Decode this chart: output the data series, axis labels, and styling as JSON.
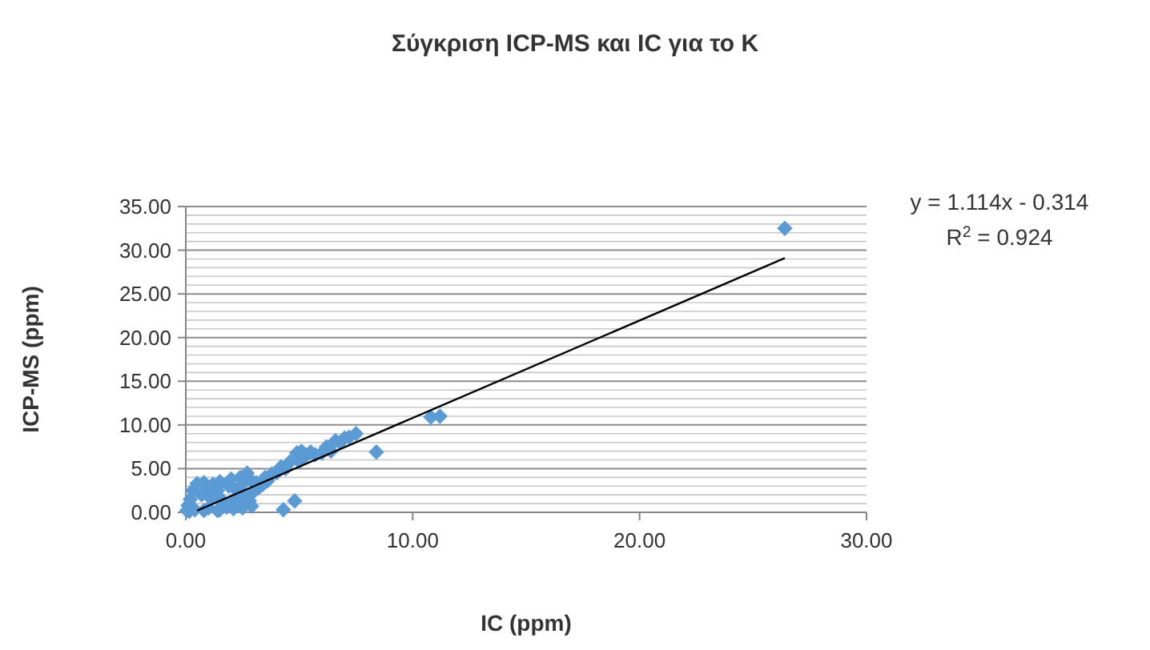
{
  "chart_data": {
    "type": "scatter",
    "title": "Σύγκριση ICP-MS και IC για το Κ",
    "xlabel": "IC (ppm)",
    "ylabel": "ICP-MS (ppm)",
    "series": [
      {
        "color": "#5b9bd5",
        "x": [
          0.05,
          0.1,
          0.15,
          0.2,
          0.3,
          0.4,
          0.5,
          0.7,
          0.8,
          0.8,
          1.0,
          1.0,
          1.1,
          1.2,
          1.4,
          1.5,
          1.5,
          1.6,
          1.8,
          1.9,
          2.0,
          2.0,
          2.1,
          2.2,
          2.3,
          2.4,
          2.5,
          2.5,
          2.6,
          2.7,
          2.8,
          2.9,
          3.0,
          3.1,
          3.2,
          3.4,
          3.5,
          3.6,
          3.8,
          4.0,
          4.2,
          4.4,
          4.6,
          4.9,
          5.0,
          5.1,
          5.3,
          5.5,
          5.7,
          6.0,
          6.2,
          6.4,
          6.6,
          6.8,
          7.0,
          7.2,
          7.5,
          4.3,
          4.8,
          8.4,
          10.8,
          11.2,
          26.4,
          1.4,
          2.9
        ],
        "values": [
          0.2,
          0.8,
          0.1,
          1.5,
          2.5,
          0.3,
          3.3,
          2.0,
          0.2,
          3.4,
          0.5,
          2.8,
          1.6,
          3.2,
          2.5,
          0.3,
          3.5,
          1.4,
          0.6,
          3.0,
          1.2,
          3.8,
          0.4,
          2.6,
          1.6,
          4.0,
          0.5,
          3.2,
          2.0,
          4.5,
          1.3,
          3.6,
          2.4,
          3.4,
          2.8,
          3.2,
          4.0,
          3.6,
          4.4,
          4.5,
          5.2,
          5.0,
          5.8,
          6.8,
          5.8,
          7.0,
          6.5,
          6.9,
          6.6,
          6.8,
          7.5,
          7.0,
          8.2,
          8.0,
          8.5,
          8.6,
          9.0,
          0.3,
          1.3,
          6.9,
          10.9,
          11.0,
          32.5,
          0.2,
          0.7
        ]
      },
      {
        "type": "line",
        "marker": "none",
        "color": "#000000",
        "x": [
          0.5,
          26.4
        ],
        "values": [
          0.2,
          29.1
        ]
      }
    ],
    "annotations": [
      "y = 1.114x - 0.314",
      "R$^{2}$ = 0.924"
    ],
    "marker": "diamond",
    "grid": "y",
    "xlim": [
      0,
      30
    ],
    "xticks": [
      {
        "value": 0,
        "label": "0.00"
      },
      {
        "value": 10,
        "label": "10.00"
      },
      {
        "value": 20,
        "label": "20.00"
      },
      {
        "value": 30,
        "label": "30.00"
      }
    ],
    "ylim": [
      0,
      35
    ],
    "yticks": [
      {
        "value": 0,
        "label": "0.00"
      },
      {
        "value": 1,
        "label": null
      },
      {
        "value": 2,
        "label": null
      },
      {
        "value": 3,
        "label": null
      },
      {
        "value": 4,
        "label": null
      },
      {
        "value": 5,
        "label": "5.00"
      },
      {
        "value": 6,
        "label": null
      },
      {
        "value": 7,
        "label": null
      },
      {
        "value": 8,
        "label": null
      },
      {
        "value": 9,
        "label": null
      },
      {
        "value": 10,
        "label": "10.00"
      },
      {
        "value": 11,
        "label": null
      },
      {
        "value": 12,
        "label": null
      },
      {
        "value": 13,
        "label": null
      },
      {
        "value": 14,
        "label": null
      },
      {
        "value": 15,
        "label": "15.00"
      },
      {
        "value": 16,
        "label": null
      },
      {
        "value": 17,
        "label": null
      },
      {
        "value": 18,
        "label": null
      },
      {
        "value": 19,
        "label": null
      },
      {
        "value": 20,
        "label": "20.00"
      },
      {
        "value": 21,
        "label": null
      },
      {
        "value": 22,
        "label": null
      },
      {
        "value": 23,
        "label": null
      },
      {
        "value": 24,
        "label": null
      },
      {
        "value": 25,
        "label": "25.00"
      },
      {
        "value": 26,
        "label": null
      },
      {
        "value": 27,
        "label": null
      },
      {
        "value": 28,
        "label": null
      },
      {
        "value": 29,
        "label": null
      },
      {
        "value": 30,
        "label": "30.00"
      },
      {
        "value": 31,
        "label": null
      },
      {
        "value": 32,
        "label": null
      },
      {
        "value": 33,
        "label": null
      },
      {
        "value": 34,
        "label": null
      },
      {
        "value": 35,
        "label": "35.00"
      }
    ]
  }
}
